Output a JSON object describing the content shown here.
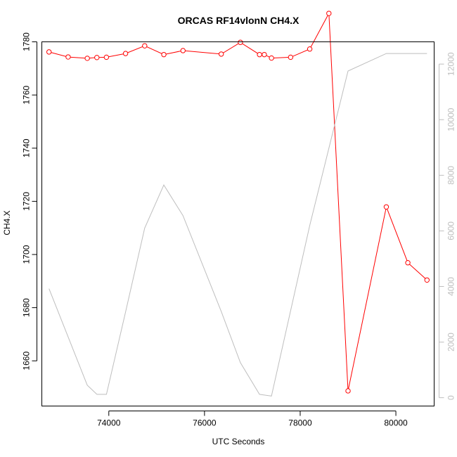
{
  "chart_data": {
    "type": "line",
    "title": "ORCAS RF14vlonN CH4.X",
    "xlabel": "UTC Seconds",
    "ylabel": "CH4.X",
    "xlim": [
      72600,
      80800
    ],
    "ylim": [
      1643,
      1780
    ],
    "y2lim": [
      -300,
      12800
    ],
    "x_ticks": [
      74000,
      76000,
      78000,
      80000
    ],
    "y_ticks": [
      1660,
      1680,
      1700,
      1720,
      1740,
      1760,
      1780
    ],
    "y2_ticks": [
      0,
      2000,
      4000,
      6000,
      8000,
      10000,
      12000
    ],
    "grid": false,
    "series": [
      {
        "axis": "left",
        "color": "#ff0000",
        "marker": "open-circle",
        "x": [
          72750,
          73150,
          73550,
          73750,
          73950,
          74350,
          74750,
          75150,
          75550,
          76350,
          76750,
          77150,
          77250,
          77400,
          77800,
          78200,
          78600,
          79000,
          79800,
          80250,
          80650
        ],
        "y": [
          1776.2,
          1774.3,
          1773.8,
          1774.1,
          1774.2,
          1775.6,
          1778.5,
          1775.2,
          1776.7,
          1775.4,
          1779.8,
          1775.2,
          1775.2,
          1773.9,
          1774.2,
          1777.3,
          1790.7,
          1648.7,
          1717.9,
          1696.9,
          1690.4
        ]
      },
      {
        "axis": "right",
        "color": "#bebebe",
        "marker": "none",
        "x": [
          72750,
          73550,
          73750,
          73950,
          74350,
          74750,
          75150,
          75550,
          76350,
          76750,
          77150,
          77400,
          78200,
          79000,
          79800,
          80250,
          80650
        ],
        "y": [
          3920,
          450,
          120,
          120,
          3080,
          6100,
          7650,
          6550,
          3100,
          1260,
          120,
          60,
          6200,
          11750,
          12380,
          12380,
          12380
        ]
      }
    ]
  }
}
